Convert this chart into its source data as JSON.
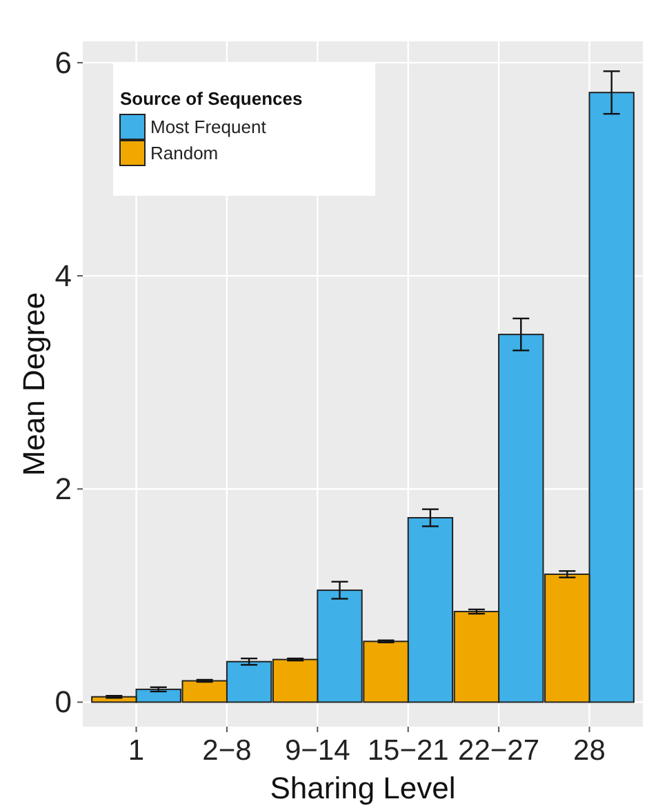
{
  "chart_data": {
    "type": "bar",
    "xlabel": "Sharing Level",
    "ylabel": "Mean Degree",
    "legend_title": "Source of Sequences",
    "categories": [
      "1",
      "2−8",
      "9−14",
      "15−21",
      "22−27",
      "28"
    ],
    "series": [
      {
        "name": "Most Frequent",
        "color": "#3fb0e8",
        "values": [
          0.12,
          0.38,
          1.05,
          1.73,
          3.45,
          5.72
        ],
        "errors": [
          0.02,
          0.03,
          0.08,
          0.08,
          0.15,
          0.2
        ]
      },
      {
        "name": "Random",
        "color": "#f0a800",
        "values": [
          0.05,
          0.2,
          0.4,
          0.57,
          0.85,
          1.2
        ],
        "errors": [
          0.01,
          0.01,
          0.01,
          0.01,
          0.02,
          0.03
        ]
      }
    ],
    "ylim": [
      -0.23,
      6.2
    ],
    "yticks": [
      0,
      2,
      4,
      6
    ],
    "grid": true,
    "legend": "top left"
  }
}
